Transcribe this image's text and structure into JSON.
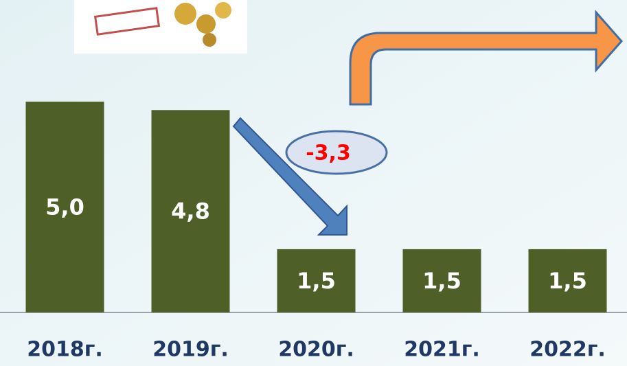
{
  "chart_data": {
    "type": "bar",
    "categories": [
      "2018г.",
      "2019г.",
      "2020г.",
      "2021г.",
      "2022г."
    ],
    "values": [
      5.0,
      4.8,
      1.5,
      1.5,
      1.5
    ],
    "value_labels": [
      "5,0",
      "4,8",
      "1,5",
      "1,5",
      "1,5"
    ],
    "color": "#4e5f27",
    "annotation": "-3,3"
  }
}
